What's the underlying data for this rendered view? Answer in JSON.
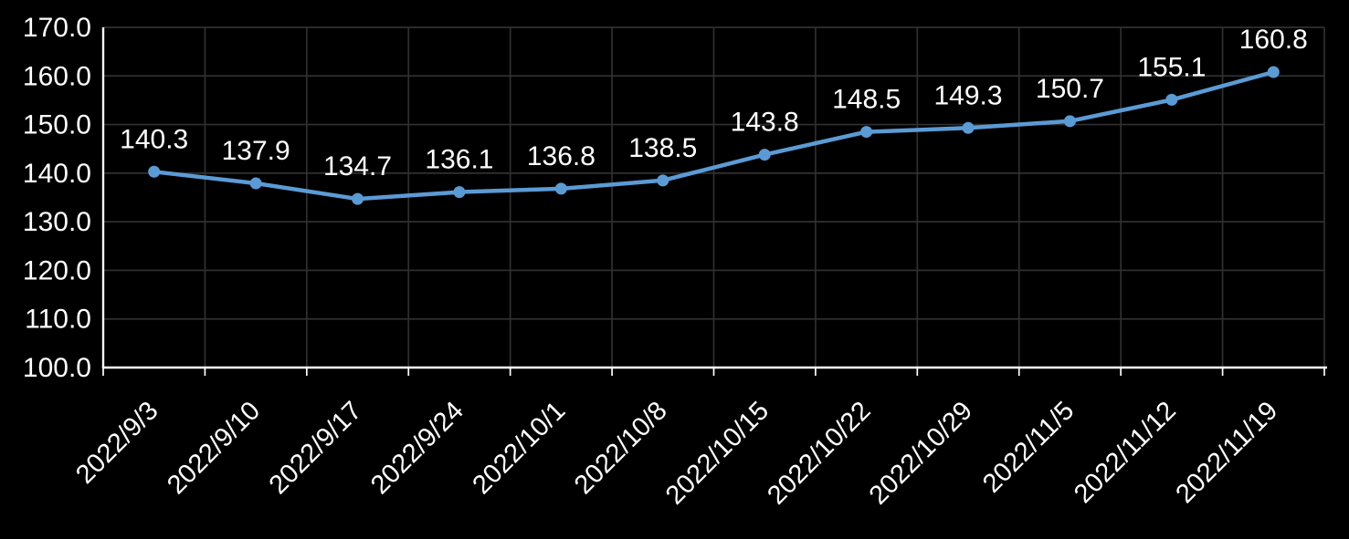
{
  "chart_data": {
    "type": "line",
    "title": "",
    "xlabel": "",
    "ylabel": "",
    "categories": [
      "2022/9/3",
      "2022/9/10",
      "2022/9/17",
      "2022/9/24",
      "2022/10/1",
      "2022/10/8",
      "2022/10/15",
      "2022/10/22",
      "2022/10/29",
      "2022/11/5",
      "2022/11/12",
      "2022/11/19"
    ],
    "series": [
      {
        "name": "",
        "values": [
          140.3,
          137.9,
          134.7,
          136.1,
          136.8,
          138.5,
          143.8,
          148.5,
          149.3,
          150.7,
          155.1,
          160.8
        ],
        "data_labels": [
          "140.3",
          "137.9",
          "134.7",
          "136.1",
          "136.8",
          "138.5",
          "143.8",
          "148.5",
          "149.3",
          "150.7",
          "155.1",
          "160.8"
        ]
      }
    ],
    "ylim": [
      100.0,
      170.0
    ],
    "ytick_step": 10,
    "ytick_labels": [
      "170.0",
      "160.0",
      "150.0",
      "140.0",
      "130.0",
      "120.0",
      "110.0",
      "100.0"
    ],
    "grid": true,
    "legend": "none",
    "x_tick_rotation_deg": 45,
    "marker": "circle",
    "colors": {
      "background": "#000000",
      "line": "#5B9BD5",
      "marker": "#5B9BD5",
      "text": "#FFFFFF",
      "gridline": "#303030",
      "axis": "#FFFFFF"
    }
  }
}
